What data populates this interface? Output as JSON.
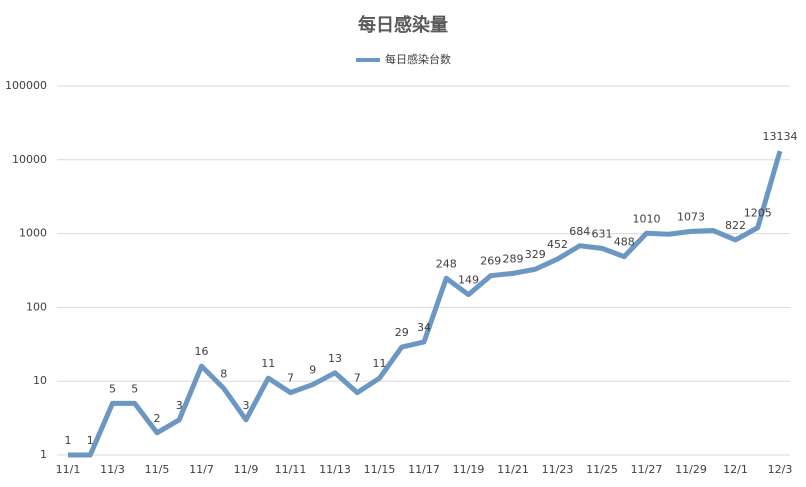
{
  "chart_data": {
    "type": "line",
    "title": "每日感染量",
    "categories": [
      "11/1",
      null,
      "11/3",
      null,
      "11/5",
      null,
      "11/7",
      null,
      "11/9",
      null,
      "11/11",
      null,
      "11/13",
      null,
      "11/15",
      null,
      "11/17",
      null,
      "11/19",
      null,
      "11/21",
      null,
      "11/23",
      null,
      "11/25",
      null,
      "11/27",
      null,
      "11/29",
      null,
      "12/1",
      null,
      "12/3"
    ],
    "series": [
      {
        "name": "每日感染台数",
        "color": "#6b97c2",
        "values": [
          1,
          1,
          5,
          5,
          2,
          3,
          16,
          8,
          3,
          11,
          7,
          9,
          13,
          7,
          11,
          29,
          34,
          248,
          149,
          269,
          289,
          329,
          452,
          684,
          631,
          488,
          1010,
          980,
          1073,
          1100,
          822,
          1205,
          13134
        ],
        "value_labels": [
          "1",
          "1",
          "5",
          "5",
          "2",
          "3",
          "16",
          "8",
          "3",
          "11",
          "7",
          "9",
          "13",
          "7",
          "11",
          "29",
          "34",
          "248",
          "149",
          "269",
          "289",
          "329",
          "452",
          "684",
          "631",
          "488",
          "1010",
          null,
          "1073",
          null,
          "822",
          "1205",
          "13134"
        ]
      }
    ],
    "ylim": [
      1,
      100000
    ],
    "yticks": [
      1,
      10,
      100,
      1000,
      10000,
      100000
    ],
    "log_scale": true,
    "grid": true,
    "legend": "top"
  }
}
